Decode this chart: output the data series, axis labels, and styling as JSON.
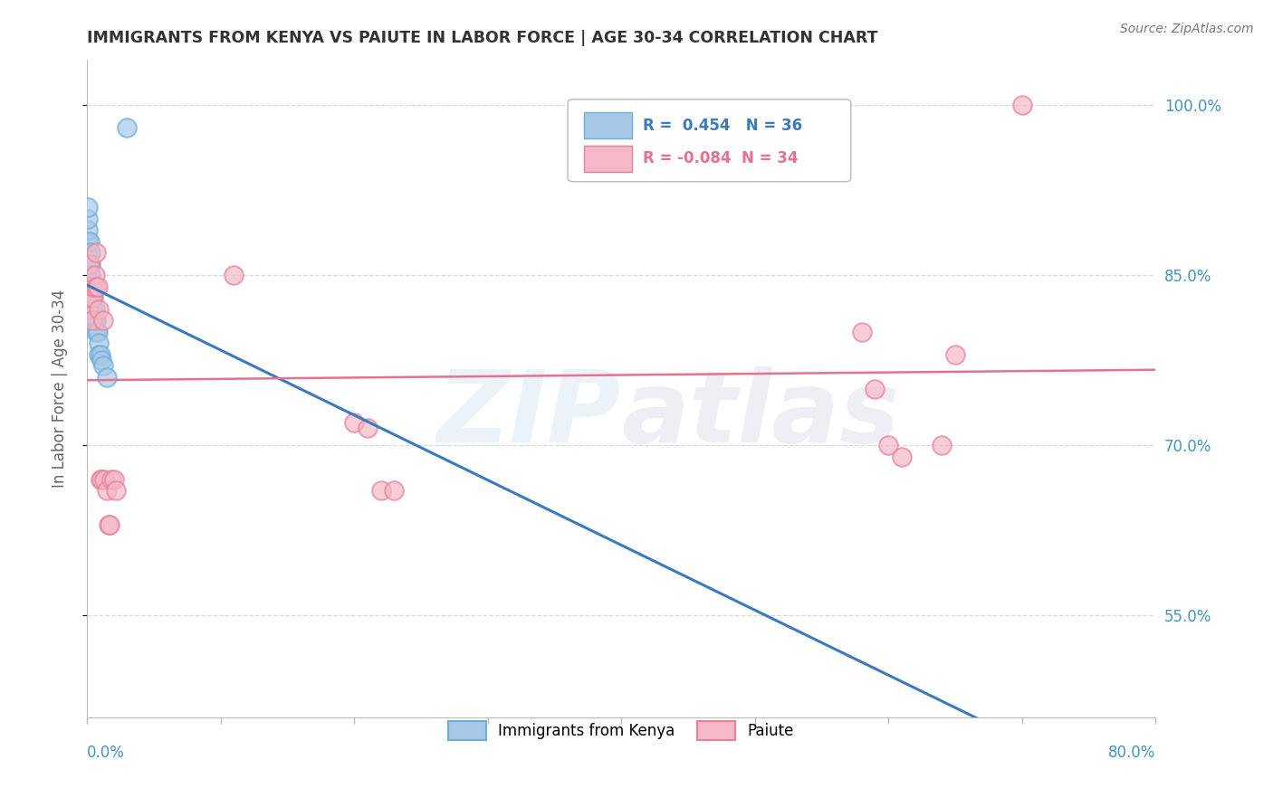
{
  "title": "IMMIGRANTS FROM KENYA VS PAIUTE IN LABOR FORCE | AGE 30-34 CORRELATION CHART",
  "source": "Source: ZipAtlas.com",
  "ylabel": "In Labor Force | Age 30-34",
  "watermark_zip": "ZIP",
  "watermark_atlas": "atlas",
  "legend_blue_r": "R =  0.454",
  "legend_blue_n": "N = 36",
  "legend_pink_r": "R = -0.084",
  "legend_pink_n": "N = 34",
  "blue_x": [
    0.001,
    0.001,
    0.001,
    0.001,
    0.001,
    0.001,
    0.001,
    0.001,
    0.001,
    0.002,
    0.002,
    0.002,
    0.002,
    0.002,
    0.002,
    0.003,
    0.003,
    0.003,
    0.003,
    0.004,
    0.004,
    0.004,
    0.005,
    0.005,
    0.006,
    0.006,
    0.007,
    0.007,
    0.008,
    0.009,
    0.009,
    0.01,
    0.011,
    0.012,
    0.015,
    0.03
  ],
  "blue_y": [
    0.87,
    0.88,
    0.89,
    0.9,
    0.91,
    0.84,
    0.85,
    0.86,
    0.83,
    0.87,
    0.88,
    0.84,
    0.85,
    0.86,
    0.82,
    0.87,
    0.86,
    0.85,
    0.84,
    0.84,
    0.83,
    0.82,
    0.83,
    0.82,
    0.82,
    0.81,
    0.81,
    0.8,
    0.8,
    0.79,
    0.78,
    0.78,
    0.775,
    0.77,
    0.76,
    0.98
  ],
  "pink_x": [
    0.001,
    0.002,
    0.002,
    0.003,
    0.004,
    0.004,
    0.005,
    0.006,
    0.007,
    0.007,
    0.008,
    0.009,
    0.01,
    0.011,
    0.012,
    0.013,
    0.015,
    0.016,
    0.017,
    0.018,
    0.02,
    0.022,
    0.11,
    0.2,
    0.21,
    0.22,
    0.23,
    0.58,
    0.59,
    0.6,
    0.61,
    0.64,
    0.65,
    0.7
  ],
  "pink_y": [
    0.82,
    0.86,
    0.83,
    0.84,
    0.83,
    0.81,
    0.84,
    0.85,
    0.84,
    0.87,
    0.84,
    0.82,
    0.67,
    0.67,
    0.81,
    0.67,
    0.66,
    0.63,
    0.63,
    0.67,
    0.67,
    0.66,
    0.85,
    0.72,
    0.715,
    0.66,
    0.66,
    0.8,
    0.75,
    0.7,
    0.69,
    0.7,
    0.78,
    1.0
  ],
  "xmin": 0.0,
  "xmax": 0.8,
  "ymin": 0.46,
  "ymax": 1.04,
  "ytick_positions": [
    0.55,
    0.7,
    0.85,
    1.0
  ],
  "ytick_labels": [
    "55.0%",
    "70.0%",
    "85.0%",
    "100.0%"
  ],
  "xtick_positions": [
    0.0,
    0.1,
    0.2,
    0.3,
    0.4,
    0.5,
    0.6,
    0.7,
    0.8
  ],
  "blue_color": "#a8c8e8",
  "blue_edge_color": "#6baed6",
  "pink_color": "#f4b8c8",
  "pink_edge_color": "#e8829a",
  "blue_line_color": "#3a7abf",
  "pink_line_color": "#e87090",
  "grid_color": "#d0d0d0",
  "title_color": "#333333",
  "right_axis_color": "#4393c3",
  "background": "#ffffff"
}
